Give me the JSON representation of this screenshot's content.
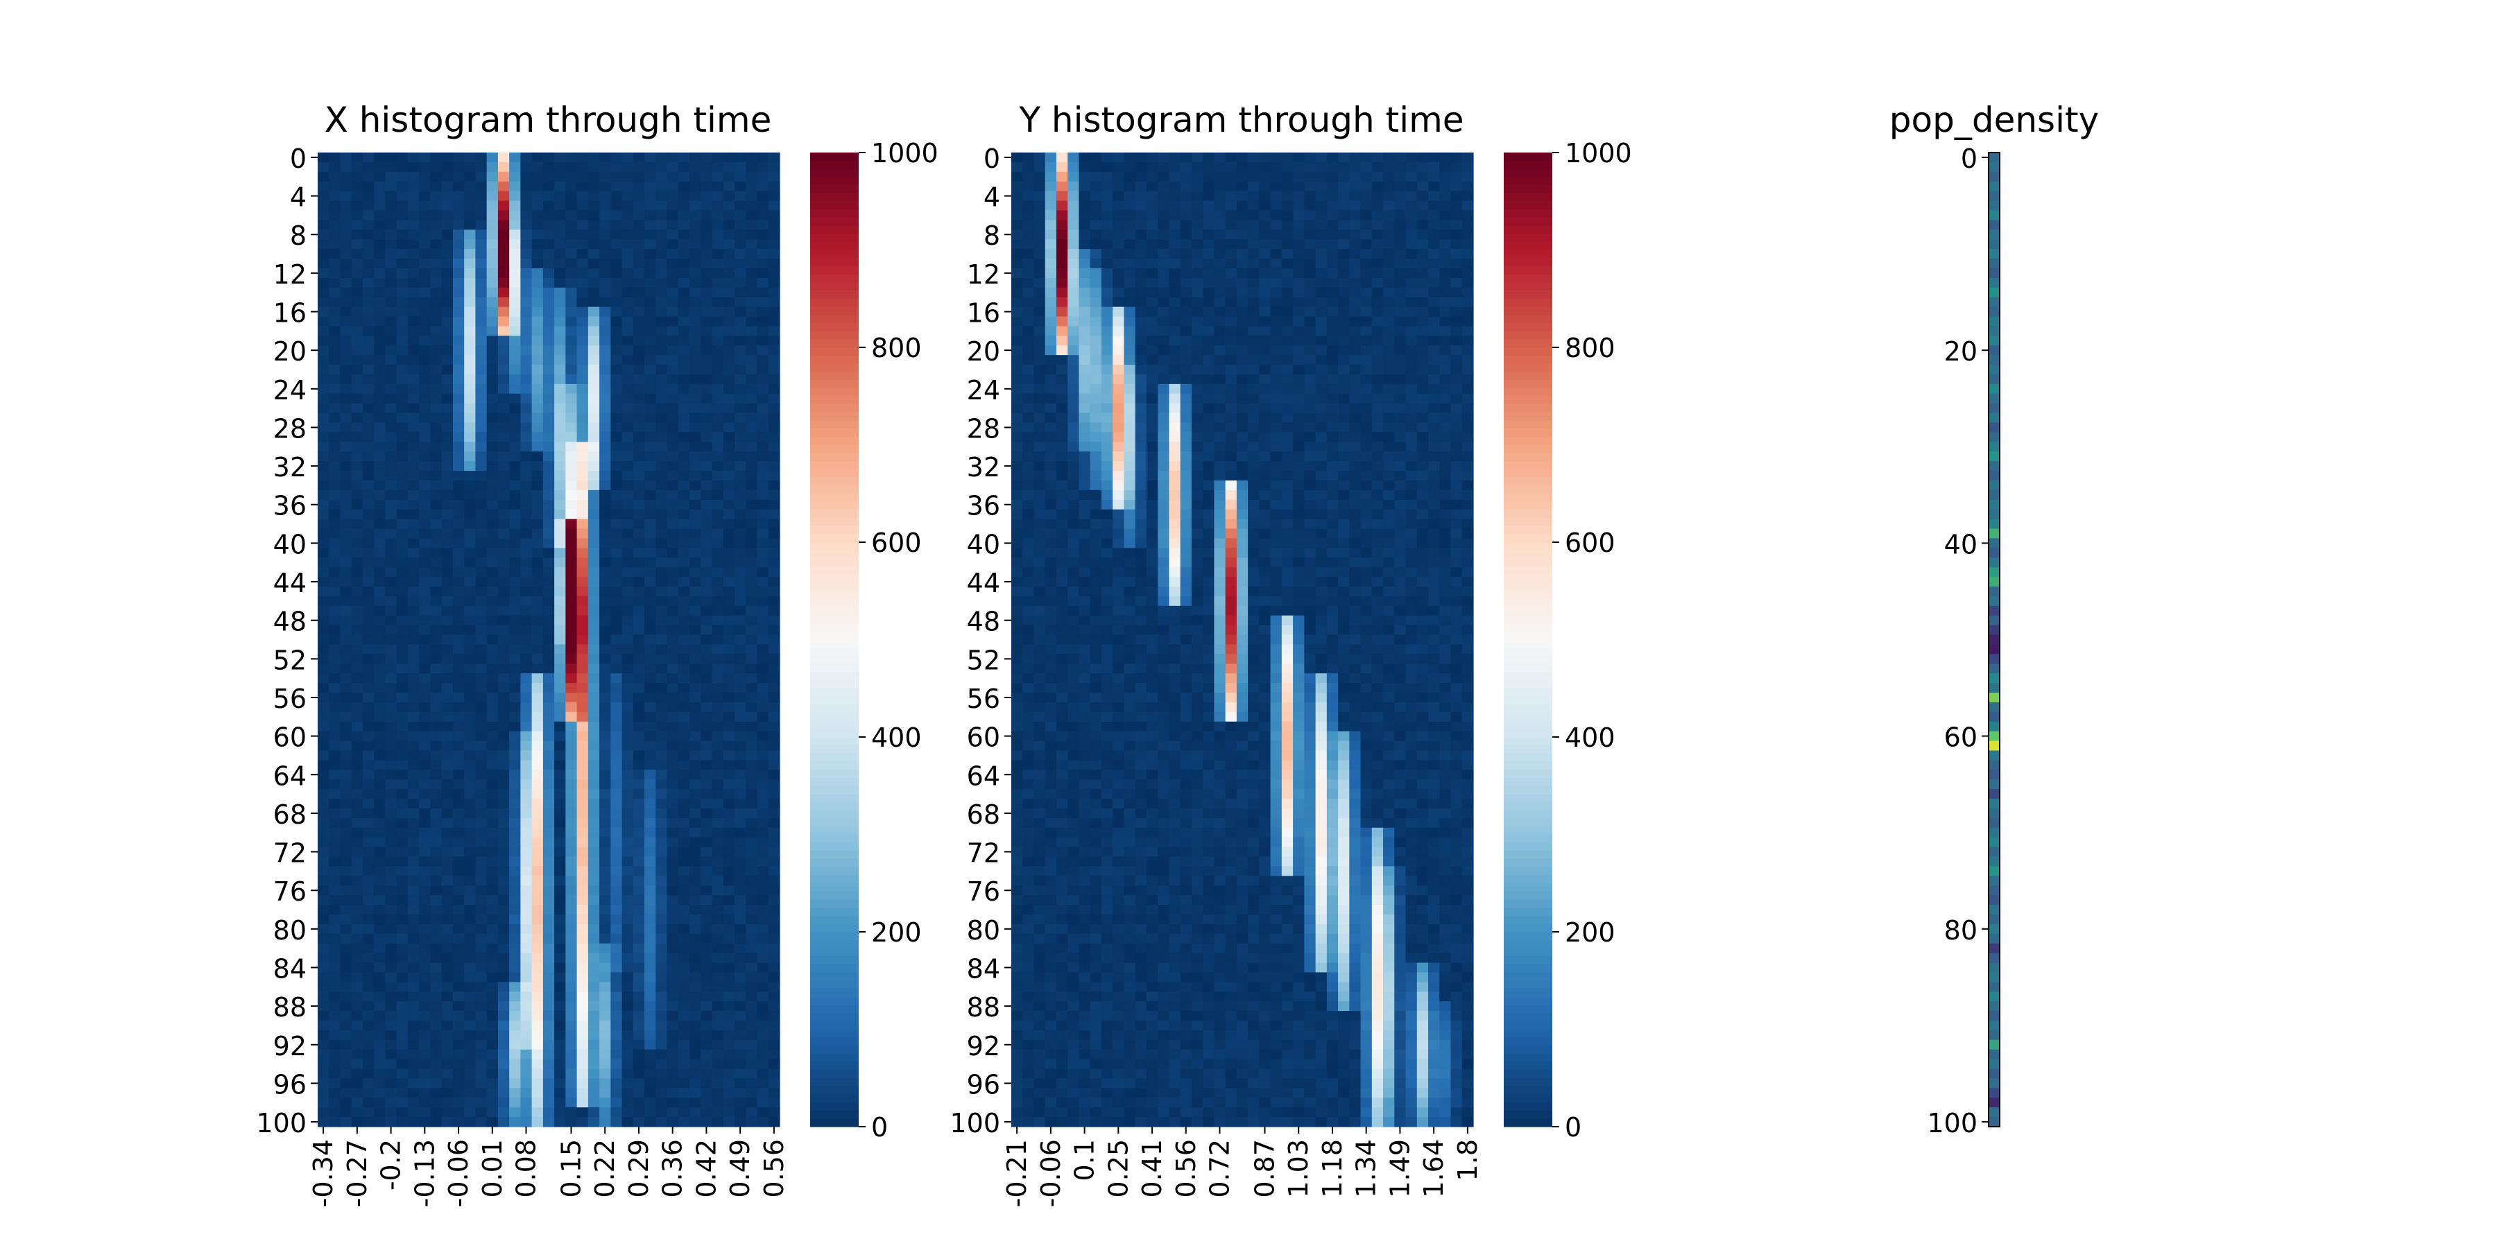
{
  "chart_data": [
    {
      "type": "heatmap",
      "title": "X histogram through time",
      "colormap": "RdBu_r",
      "colorbar": {
        "min": 0,
        "max": 1000,
        "ticks": [
          0,
          200,
          400,
          600,
          800,
          1000
        ]
      },
      "y_ticks": [
        0,
        4,
        8,
        12,
        16,
        20,
        24,
        28,
        32,
        36,
        40,
        44,
        48,
        52,
        56,
        60,
        64,
        68,
        72,
        76,
        80,
        84,
        88,
        92,
        96,
        100
      ],
      "x_ticks": [
        "-0.34",
        "-0.27",
        "-0.2",
        "-0.13",
        "-0.06",
        "0.01",
        "0.08",
        "0.15",
        "0.22",
        "0.29",
        "0.36",
        "0.42",
        "0.49",
        "0.56"
      ],
      "n_rows": 101,
      "n_cols": 41,
      "streaks": [
        {
          "col": 16,
          "t0": 0,
          "t1": 18,
          "peak": 1000
        },
        {
          "col": 13,
          "t0": 8,
          "t1": 32,
          "peak": 380
        },
        {
          "col": 17,
          "t0": 8,
          "t1": 24,
          "peak": 200
        },
        {
          "col": 19,
          "t0": 12,
          "t1": 30,
          "peak": 220
        },
        {
          "col": 21,
          "t0": 14,
          "t1": 40,
          "peak": 250
        },
        {
          "col": 24,
          "t0": 16,
          "t1": 34,
          "peak": 420
        },
        {
          "col": 22,
          "t0": 24,
          "t1": 50,
          "peak": 300
        },
        {
          "col": 23,
          "t0": 30,
          "t1": 98,
          "peak": 650
        },
        {
          "col": 22,
          "t0": 38,
          "t1": 58,
          "peak": 880
        },
        {
          "col": 19,
          "t0": 54,
          "t1": 100,
          "peak": 560
        },
        {
          "col": 18,
          "t0": 60,
          "t1": 92,
          "peak": 240
        },
        {
          "col": 17,
          "t0": 86,
          "t1": 100,
          "peak": 300
        },
        {
          "col": 25,
          "t0": 82,
          "t1": 100,
          "peak": 260
        },
        {
          "col": 29,
          "t0": 64,
          "t1": 92,
          "peak": 120
        },
        {
          "col": 26,
          "t0": 54,
          "t1": 84,
          "peak": 100
        }
      ]
    },
    {
      "type": "heatmap",
      "title": "Y histogram through time",
      "colormap": "RdBu_r",
      "colorbar": {
        "min": 0,
        "max": 1000,
        "ticks": [
          0,
          200,
          400,
          600,
          800,
          1000
        ]
      },
      "y_ticks": [
        0,
        4,
        8,
        12,
        16,
        20,
        24,
        28,
        32,
        36,
        40,
        44,
        48,
        52,
        56,
        60,
        64,
        68,
        72,
        76,
        80,
        84,
        88,
        92,
        96,
        100
      ],
      "x_ticks": [
        "-0.21",
        "-0.06",
        "0.1",
        "0.25",
        "0.41",
        "0.56",
        "0.72",
        "0.87",
        "1.03",
        "1.18",
        "1.34",
        "1.49",
        "1.64",
        "1.8"
      ],
      "n_rows": 101,
      "n_cols": 41,
      "streaks": [
        {
          "col": 4,
          "t0": 0,
          "t1": 20,
          "peak": 1000
        },
        {
          "col": 6,
          "t0": 10,
          "t1": 30,
          "peak": 230
        },
        {
          "col": 7,
          "t0": 12,
          "t1": 34,
          "peak": 200
        },
        {
          "col": 9,
          "t0": 16,
          "t1": 36,
          "peak": 650
        },
        {
          "col": 10,
          "t0": 22,
          "t1": 40,
          "peak": 180
        },
        {
          "col": 14,
          "t0": 24,
          "t1": 46,
          "peak": 620
        },
        {
          "col": 19,
          "t0": 34,
          "t1": 58,
          "peak": 900
        },
        {
          "col": 24,
          "t0": 48,
          "t1": 74,
          "peak": 640
        },
        {
          "col": 27,
          "t0": 54,
          "t1": 84,
          "peak": 520
        },
        {
          "col": 29,
          "t0": 60,
          "t1": 88,
          "peak": 420
        },
        {
          "col": 32,
          "t0": 70,
          "t1": 100,
          "peak": 480
        },
        {
          "col": 33,
          "t0": 74,
          "t1": 100,
          "peak": 200
        },
        {
          "col": 36,
          "t0": 84,
          "t1": 100,
          "peak": 360
        },
        {
          "col": 38,
          "t0": 88,
          "t1": 100,
          "peak": 120
        }
      ]
    },
    {
      "type": "heatmap",
      "title": "pop_density",
      "colormap": "viridis",
      "y_ticks": [
        0,
        20,
        40,
        60,
        80,
        100
      ],
      "n_rows": 101,
      "values": [
        0.34,
        0.37,
        0.31,
        0.4,
        0.33,
        0.36,
        0.45,
        0.3,
        0.38,
        0.35,
        0.42,
        0.33,
        0.28,
        0.39,
        0.5,
        0.36,
        0.32,
        0.41,
        0.37,
        0.44,
        0.3,
        0.35,
        0.38,
        0.33,
        0.47,
        0.36,
        0.31,
        0.4,
        0.26,
        0.34,
        0.43,
        0.52,
        0.35,
        0.3,
        0.38,
        0.33,
        0.41,
        0.36,
        0.44,
        0.64,
        0.35,
        0.29,
        0.4,
        0.55,
        0.62,
        0.33,
        0.38,
        0.2,
        0.31,
        0.18,
        0.1,
        0.08,
        0.22,
        0.33,
        0.47,
        0.38,
        0.8,
        0.36,
        0.29,
        0.43,
        0.74,
        0.95,
        0.4,
        0.33,
        0.28,
        0.36,
        0.22,
        0.41,
        0.35,
        0.3,
        0.38,
        0.45,
        0.33,
        0.4,
        0.52,
        0.36,
        0.31,
        0.25,
        0.38,
        0.33,
        0.42,
        0.35,
        0.18,
        0.3,
        0.37,
        0.41,
        0.33,
        0.46,
        0.36,
        0.3,
        0.39,
        0.34,
        0.58,
        0.33,
        0.38,
        0.29,
        0.36,
        0.22,
        0.12,
        0.37,
        0.33
      ]
    }
  ]
}
